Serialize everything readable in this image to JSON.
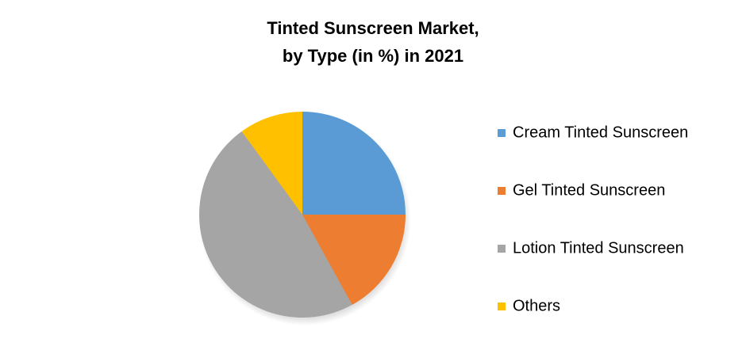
{
  "chart_data": {
    "type": "pie",
    "title": [
      "Tinted Sunscreen Market,",
      "by Type (in %) in 2021"
    ],
    "categories": [
      "Cream Tinted Sunscreen",
      "Gel Tinted Sunscreen",
      "Lotion Tinted Sunscreen",
      "Others"
    ],
    "values": [
      25,
      17,
      48,
      10
    ],
    "colors": [
      "#5b9bd5",
      "#ed7d31",
      "#a5a5a5",
      "#ffc000"
    ],
    "legend": "right"
  }
}
